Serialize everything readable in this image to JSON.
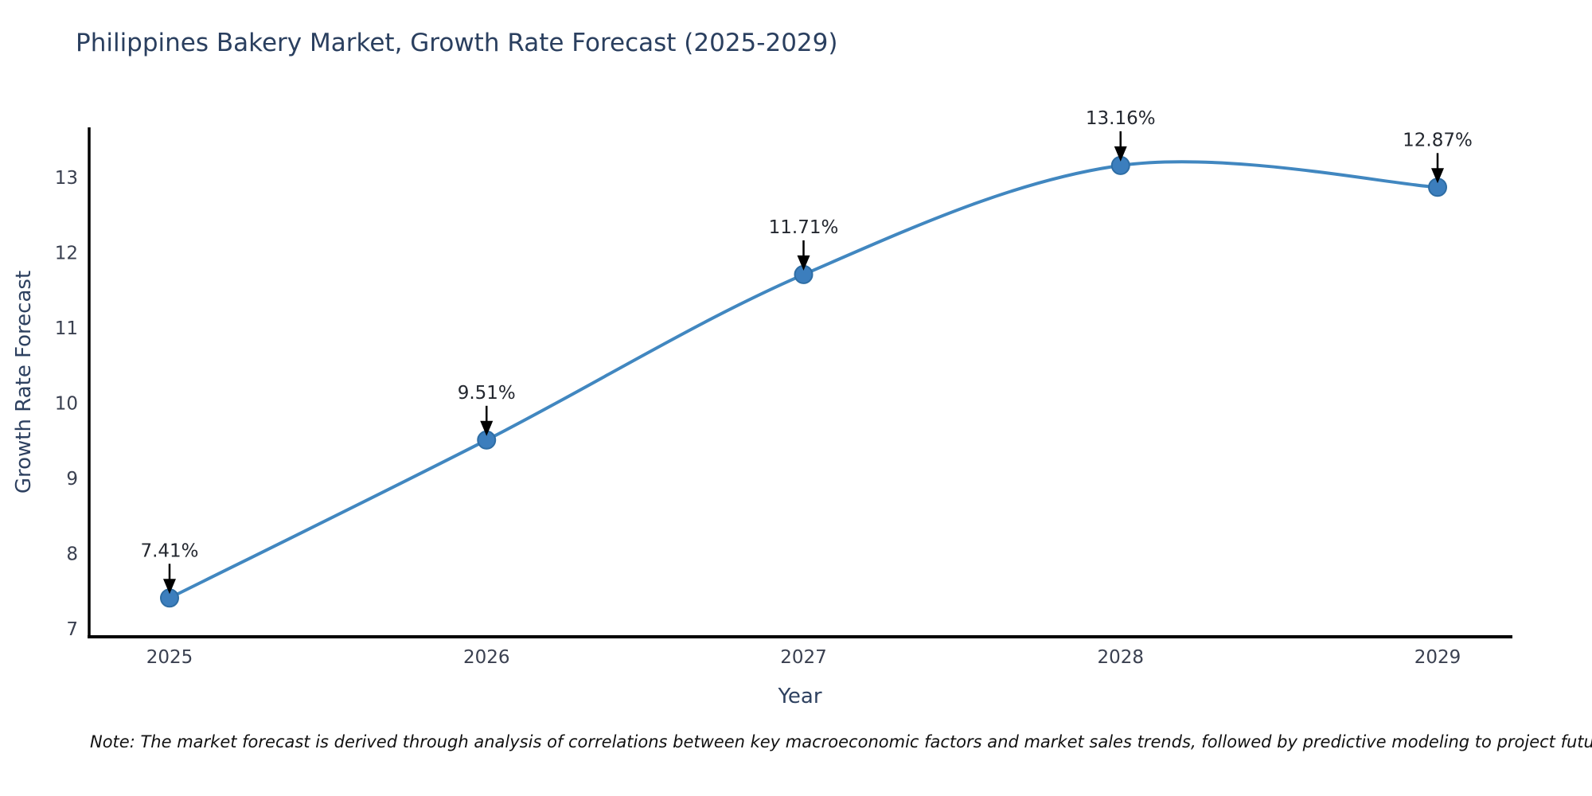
{
  "chart_data": {
    "type": "line",
    "title": "Philippines Bakery Market, Growth Rate Forecast (2025-2029)",
    "xlabel": "Year",
    "ylabel": "Growth Rate Forecast",
    "categories": [
      "2025",
      "2026",
      "2027",
      "2028",
      "2029"
    ],
    "values": [
      7.41,
      9.51,
      11.71,
      13.16,
      12.87
    ],
    "point_labels": [
      "7.41%",
      "9.51%",
      "11.71%",
      "13.16%",
      "12.87%"
    ],
    "yticks": [
      7,
      8,
      9,
      10,
      11,
      12,
      13
    ],
    "ylim": [
      6.9,
      13.67
    ],
    "line_shape": "spline",
    "markers": true,
    "grid": false,
    "legend_position": "none",
    "note": "Note: The market forecast is derived through analysis of correlations between key macroeconomic factors and market sales trends, followed by predictive modeling to project future sales",
    "colors": {
      "line": "#4187c0",
      "marker": "#3c7ebd",
      "marker_edge": "#2e6da4",
      "title_text": "#2a3f5f",
      "axis_text": "#2e4160",
      "tick_text": "#3a4050",
      "annotation_text": "#23272f",
      "arrow": "#000000",
      "axis_line": "#000000",
      "background": "#ffffff"
    }
  }
}
